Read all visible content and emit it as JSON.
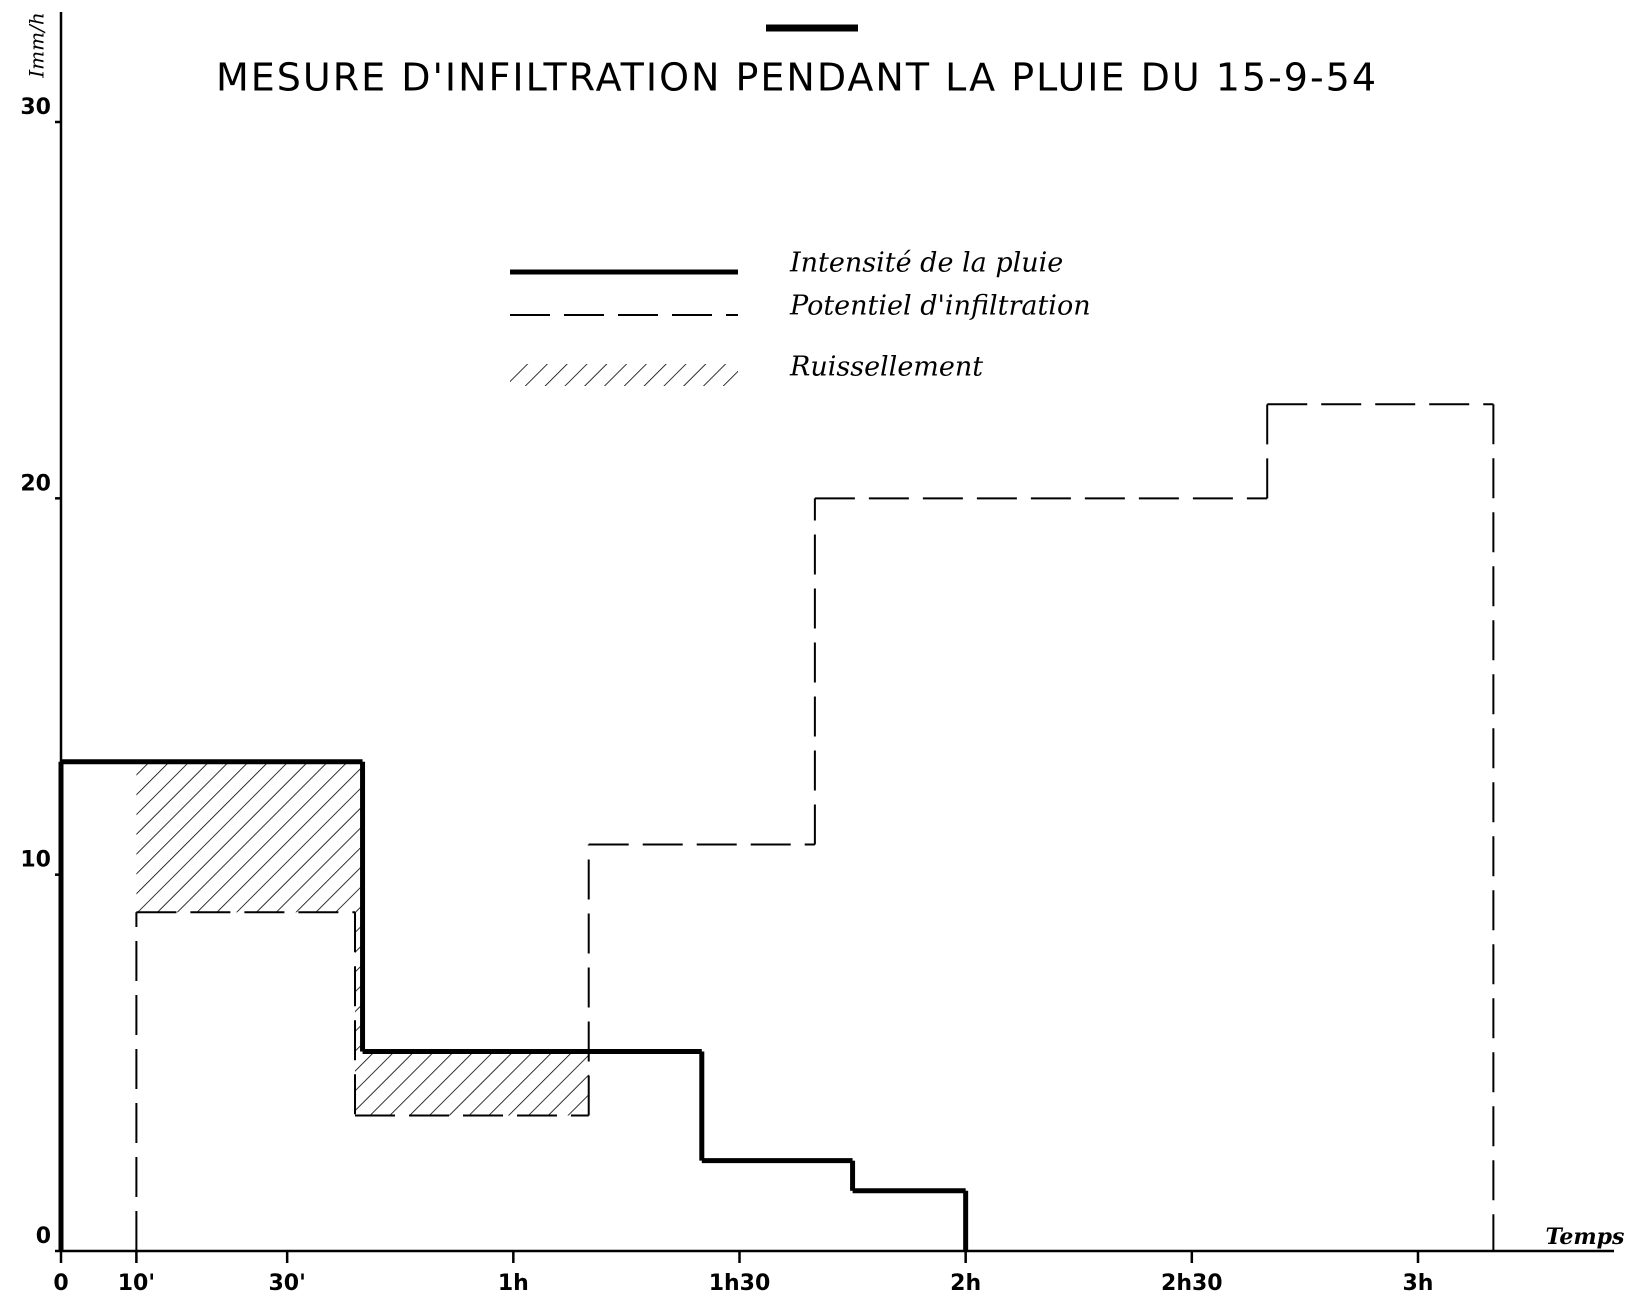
{
  "chart_data": {
    "type": "step",
    "title": "MESURE D'INFILTRATION PENDANT LA PLUIE DU 15-9-54",
    "x_label": "Temps",
    "y_label": "Imm/h",
    "xlim": [
      0,
      206
    ],
    "ylim": [
      0,
      30
    ],
    "xticks": [
      0,
      {
        "value": 10,
        "label": "10'"
      },
      {
        "value": 30,
        "label": "30'"
      },
      {
        "value": 60,
        "label": "1h"
      },
      {
        "value": 90,
        "label": "1h30"
      },
      {
        "value": 120,
        "label": "2h"
      },
      {
        "value": 150,
        "label": "2h30"
      },
      {
        "value": 180,
        "label": "3h"
      }
    ],
    "yticks": [
      0,
      10,
      20,
      30
    ],
    "series": [
      {
        "name": "Intensité de la pluie",
        "color": "#000000",
        "style": "solid",
        "bins": [
          0,
          40,
          85,
          105,
          120
        ],
        "values": [
          13,
          5.3,
          2.4,
          1.6
        ]
      },
      {
        "name": "Potentiel d'infiltration",
        "color": "#000000",
        "style": "dashed",
        "bins": [
          10,
          39,
          70,
          100,
          160,
          190
        ],
        "values": [
          9,
          3.6,
          10.8,
          20,
          22.5
        ]
      },
      {
        "name": "Ruissellement",
        "color": "#000000",
        "style": "hatch"
      }
    ]
  }
}
